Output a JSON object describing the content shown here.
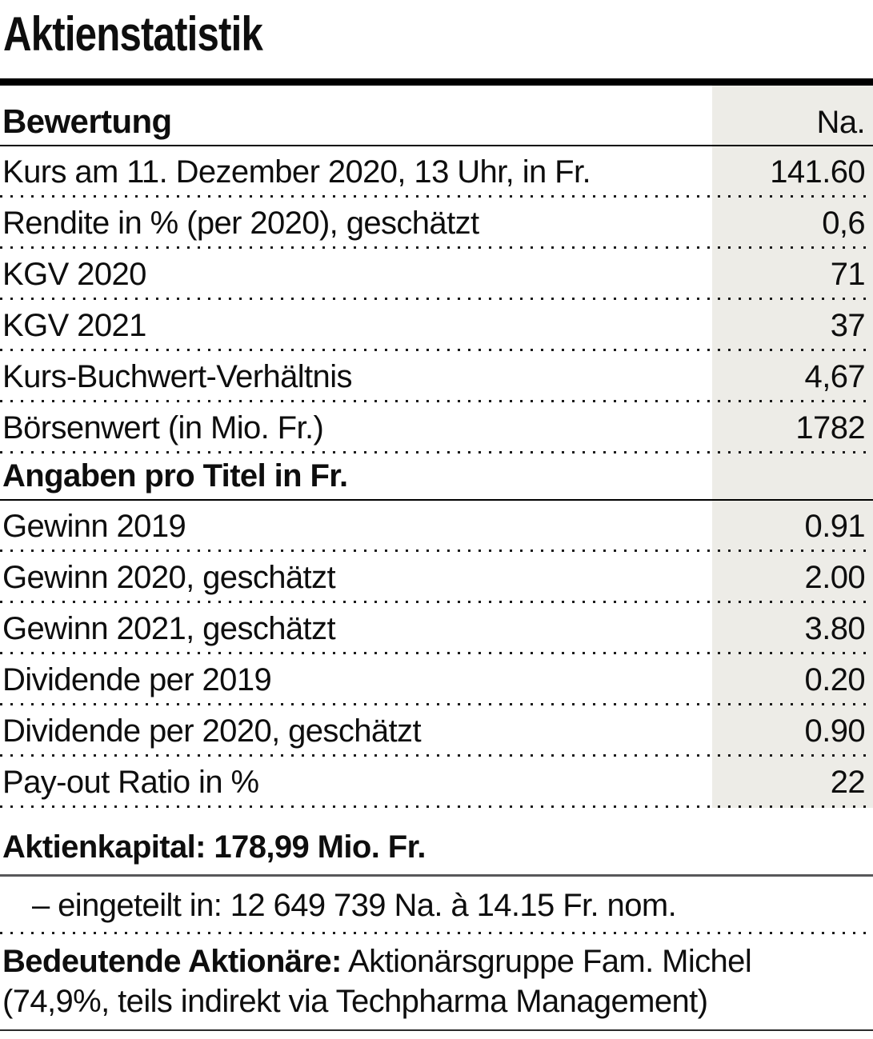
{
  "page": {
    "title": "Aktienstatistik"
  },
  "table": {
    "header": {
      "label": "Bewertung",
      "unit": "Na."
    },
    "rows": [
      {
        "label": "Kurs am 11. Dezember 2020, 13 Uhr, in Fr.",
        "value": "141.60"
      },
      {
        "label": "Rendite in % (per 2020), geschätzt",
        "value": "0,6"
      },
      {
        "label": "KGV 2020",
        "value": "71"
      },
      {
        "label": "KGV 2021",
        "value": "37"
      },
      {
        "label": "Kurs-Buchwert-Verhältnis",
        "value": "4,67"
      },
      {
        "label": "Börsenwert (in Mio. Fr.)",
        "value": "1782"
      }
    ],
    "section2_label": "Angaben pro Titel in Fr.",
    "rows2": [
      {
        "label": "Gewinn 2019",
        "value": "0.91"
      },
      {
        "label": "Gewinn 2020, geschätzt",
        "value": "2.00"
      },
      {
        "label": "Gewinn 2021, geschätzt",
        "value": "3.80"
      },
      {
        "label": "Dividende per 2019",
        "value": "0.20"
      },
      {
        "label": "Dividende per 2020, geschätzt",
        "value": "0.90"
      },
      {
        "label": "Pay-out Ratio in %",
        "value": "22"
      }
    ]
  },
  "footer": {
    "aktienkapital": "Aktienkapital: 178,99 Mio. Fr.",
    "eingeteilt": "– eingeteilt in: 12 649 739 Na. à 14.15 Fr. nom.",
    "bedeutende_bold": "Bedeutende Aktionäre:",
    "bedeutende_rest": " Aktionärsgruppe Fam. Michel",
    "bedeutende_line2": "(74,9%, teils indirekt via Techpharma Management)"
  },
  "colors": {
    "highlight_column": "#EDECE7",
    "text": "#0E0E0E",
    "rule": "#000000"
  }
}
